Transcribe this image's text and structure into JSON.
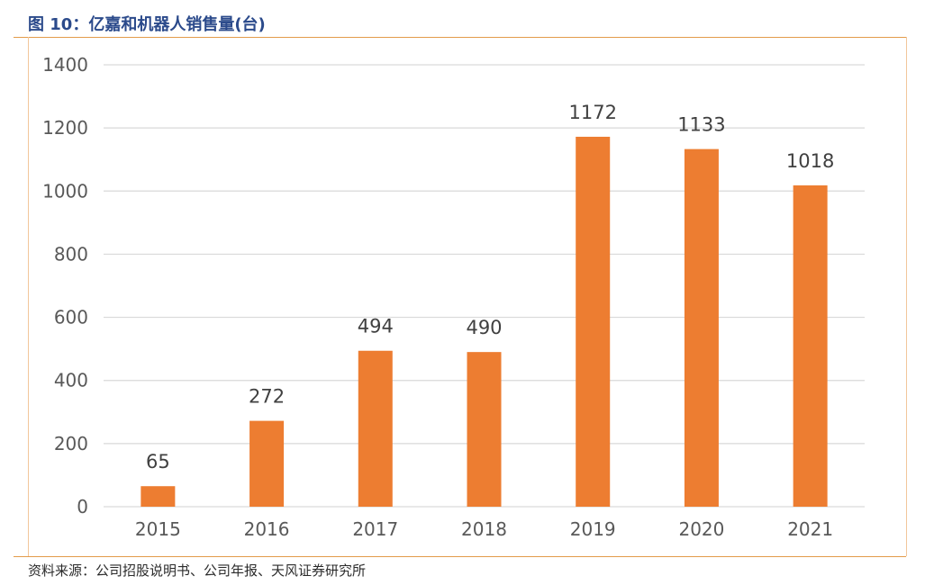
{
  "figure": {
    "title": "图 10：亿嘉和机器人销售量(台)",
    "source": "资料来源：公司招股说明书、公司年报、天风证券研究所"
  },
  "colors": {
    "bar": "#ed7d31",
    "title": "#2b4a8b",
    "rule": "#e39b4a",
    "grid": "#d9d9d9"
  },
  "chart_data": {
    "type": "bar",
    "title": "",
    "xlabel": "",
    "ylabel": "",
    "categories": [
      "2015",
      "2016",
      "2017",
      "2018",
      "2019",
      "2020",
      "2021"
    ],
    "values": [
      65,
      272,
      494,
      490,
      1172,
      1133,
      1018
    ],
    "data_labels": [
      "65",
      "272",
      "494",
      "490",
      "1172",
      "1133",
      "1018"
    ],
    "ylim": [
      0,
      1400
    ],
    "yticks": [
      "0",
      "200",
      "400",
      "600",
      "800",
      "1000",
      "1200",
      "1400"
    ],
    "grid": true,
    "legend": "none"
  }
}
